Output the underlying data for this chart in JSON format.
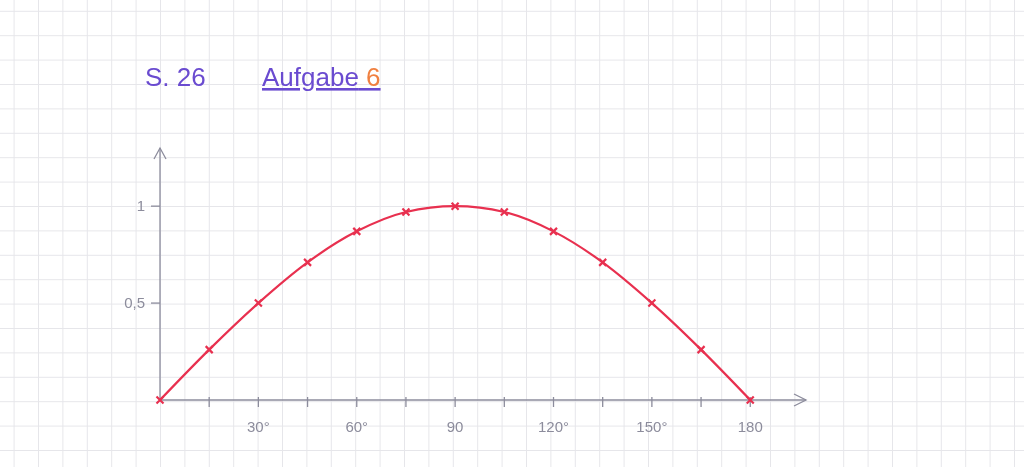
{
  "chart_data": {
    "type": "line",
    "title": "S. 26",
    "subtitle": "Aufgabe 6",
    "x": [
      0,
      15,
      30,
      45,
      60,
      75,
      90,
      105,
      120,
      135,
      150,
      165,
      180
    ],
    "series": [
      {
        "color": "#e8304f",
        "values": [
          0,
          0.26,
          0.5,
          0.71,
          0.87,
          0.97,
          1,
          0.97,
          0.87,
          0.71,
          0.5,
          0.26,
          0
        ]
      }
    ],
    "xlim": [
      0,
      197
    ],
    "ylim": [
      0,
      1.3
    ],
    "xticks": [
      {
        "value": 15,
        "label": null
      },
      {
        "value": 30,
        "label": "30°"
      },
      {
        "value": 45,
        "label": null
      },
      {
        "value": 60,
        "label": "60°"
      },
      {
        "value": 75,
        "label": null
      },
      90,
      {
        "value": 105,
        "label": null
      },
      {
        "value": 120,
        "label": "120°"
      },
      {
        "value": 135,
        "label": null
      },
      {
        "value": 150,
        "label": "150°"
      },
      {
        "value": 165,
        "label": null
      },
      180
    ],
    "yticks": [
      {
        "value": 0.5,
        "label": "0,5"
      },
      1
    ],
    "marker": "cross"
  }
}
